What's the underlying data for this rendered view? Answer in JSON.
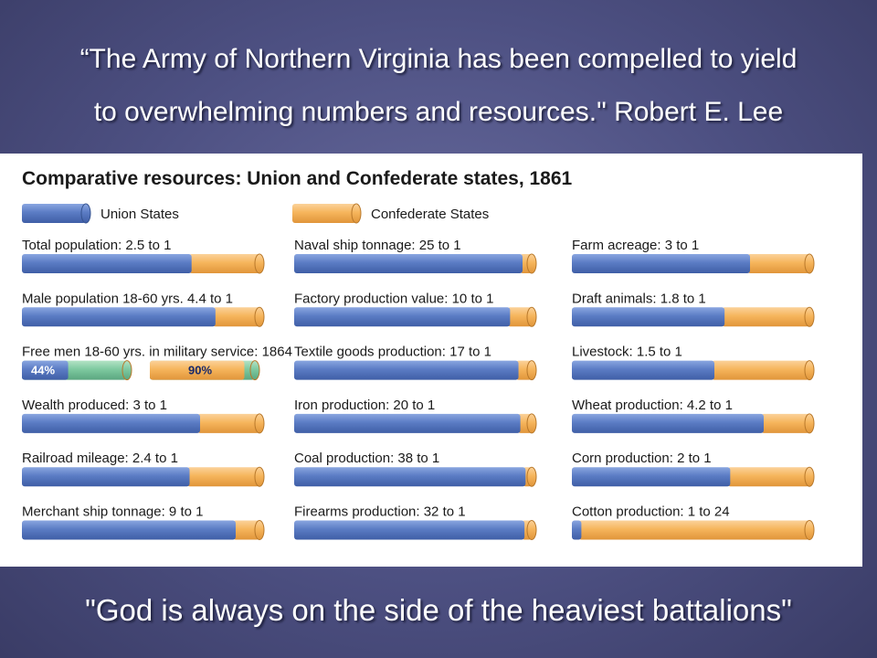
{
  "slide": {
    "quote_top_line1": "“The Army of Northern Virginia has been compelled to yield",
    "quote_top_line2": "to overwhelming numbers and resources.\" Robert E. Lee",
    "quote_bottom": "\"God is always on the side of the heaviest battalions\""
  },
  "colors": {
    "union": "#5b7cc4",
    "confederate": "#f6b55c",
    "military_service": "#7ec9a0",
    "background": "#4d5082"
  },
  "chart_data": {
    "type": "bar",
    "orientation": "horizontal-stacked-ratio",
    "title": "Comparative resources: Union and Confederate states, 1861",
    "legend": {
      "placement": "top",
      "entries": [
        {
          "name": "Union States",
          "color": "#5b7cc4"
        },
        {
          "name": "Confederate States",
          "color": "#f6b55c"
        }
      ]
    },
    "columns": [
      {
        "items": [
          {
            "label": "Total population: 2.5 to 1",
            "union": 2.5,
            "confederate": 1
          },
          {
            "label": "Male population 18-60 yrs. 4.4 to 1",
            "union": 4.4,
            "confederate": 1
          },
          {
            "label": "Free men 18-60 yrs. in military service: 1864",
            "type": "percent",
            "union_percent": 44,
            "confederate_percent": 90,
            "union_text": "44%",
            "confederate_text": "90%"
          },
          {
            "label": "Wealth produced: 3 to 1",
            "union": 3,
            "confederate": 1
          },
          {
            "label": "Railroad mileage: 2.4 to 1",
            "union": 2.4,
            "confederate": 1
          },
          {
            "label": "Merchant ship tonnage: 9 to 1",
            "union": 9,
            "confederate": 1
          }
        ]
      },
      {
        "items": [
          {
            "label": "Naval ship tonnage: 25 to 1",
            "union": 25,
            "confederate": 1
          },
          {
            "label": "Factory production value: 10 to 1",
            "union": 10,
            "confederate": 1
          },
          {
            "label": "Textile goods production: 17 to 1",
            "union": 17,
            "confederate": 1
          },
          {
            "label": "Iron production: 20 to 1",
            "union": 20,
            "confederate": 1
          },
          {
            "label": "Coal production: 38 to 1",
            "union": 38,
            "confederate": 1
          },
          {
            "label": "Firearms production: 32 to 1",
            "union": 32,
            "confederate": 1
          }
        ]
      },
      {
        "items": [
          {
            "label": "Farm acreage: 3 to 1",
            "union": 3,
            "confederate": 1
          },
          {
            "label": "Draft animals: 1.8 to 1",
            "union": 1.8,
            "confederate": 1
          },
          {
            "label": "Livestock: 1.5 to 1",
            "union": 1.5,
            "confederate": 1
          },
          {
            "label": "Wheat production: 4.2 to 1",
            "union": 4.2,
            "confederate": 1
          },
          {
            "label": "Corn production: 2 to 1",
            "union": 2,
            "confederate": 1
          },
          {
            "label": "Cotton production: 1 to 24",
            "union": 1,
            "confederate": 24
          }
        ]
      }
    ]
  }
}
